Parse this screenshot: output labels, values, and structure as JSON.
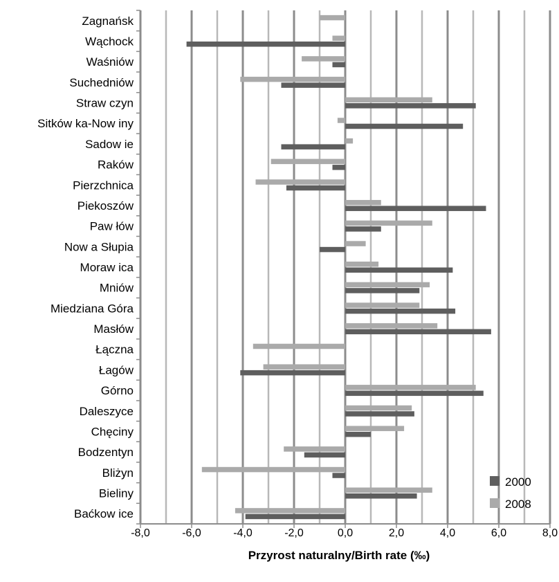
{
  "chart_data": {
    "type": "bar",
    "orientation": "horizontal",
    "categories": [
      "Zagnańsk",
      "Wąchock",
      "Waśniów",
      "Suchedniów",
      "Straw czyn",
      "Sitków ka-Now iny",
      "Sadow ie",
      "Raków",
      "Pierzchnica",
      "Piekoszów",
      "Paw łów",
      "Now a Słupia",
      "Moraw ica",
      "Mniów",
      "Miedziana Góra",
      "Masłów",
      "Łączna",
      "Łagów",
      "Górno",
      "Daleszyce",
      "Chęciny",
      "Bodzentyn",
      "Bliżyn",
      "Bieliny",
      "Baćkow ice"
    ],
    "series": [
      {
        "name": "2000",
        "color": "#5e5e5e",
        "values": [
          0.0,
          -6.2,
          -0.5,
          -2.5,
          5.1,
          4.6,
          -2.5,
          -0.5,
          -2.3,
          5.5,
          1.4,
          -1.0,
          4.2,
          2.9,
          4.3,
          5.7,
          0.0,
          -4.1,
          5.4,
          2.7,
          1.0,
          -1.6,
          -0.5,
          2.8,
          -3.9
        ]
      },
      {
        "name": "2008",
        "color": "#aaaaaa",
        "values": [
          -1.0,
          -0.5,
          -1.7,
          -4.1,
          3.4,
          -0.3,
          0.3,
          -2.9,
          -3.5,
          1.4,
          3.4,
          0.8,
          1.3,
          3.3,
          2.9,
          3.6,
          -3.6,
          -3.2,
          5.1,
          2.6,
          2.3,
          -2.4,
          -5.6,
          3.4,
          -4.3
        ]
      }
    ],
    "xlim": [
      -8,
      8
    ],
    "xticks": [
      "-8,0",
      "-6,0",
      "-4,0",
      "-2,0",
      "0,0",
      "2,0",
      "4,0",
      "6,0",
      "8,0"
    ],
    "xlabel": "Przyrost naturalny/Birth rate (‰)",
    "legend": [
      "2000",
      "2008"
    ],
    "legend_position": "bottom-right",
    "grid": true
  }
}
